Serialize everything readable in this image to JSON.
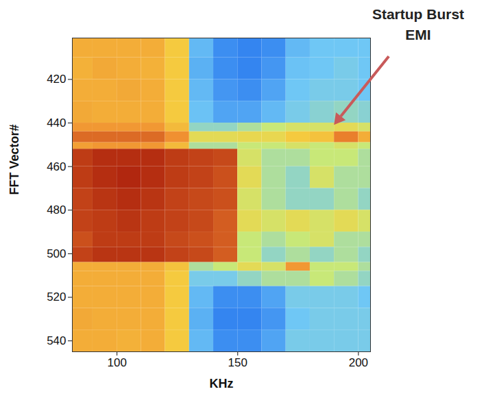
{
  "chart_data": {
    "type": "heatmap",
    "x_label": "KHz",
    "y_label": "FFT Vector#",
    "xlim": [
      81.5,
      205
    ],
    "xticks": [
      100,
      150,
      200
    ],
    "ylim": [
      545,
      401
    ],
    "yticks": [
      420,
      440,
      460,
      480,
      500,
      520,
      540
    ],
    "color_range": [
      0,
      1
    ],
    "x_edges": [
      81.5,
      90,
      100,
      110,
      120,
      130,
      140,
      150,
      160,
      170,
      180,
      190,
      200,
      205
    ],
    "y_edges": [
      401,
      410,
      420,
      430,
      440,
      444,
      449,
      452,
      460,
      470,
      480,
      490,
      497,
      504,
      508,
      515,
      525,
      535,
      545
    ],
    "values": [
      [
        0.75,
        0.75,
        0.75,
        0.75,
        0.68,
        0.3,
        0.2,
        0.18,
        0.2,
        0.3,
        0.33,
        0.33,
        0.33
      ],
      [
        0.74,
        0.76,
        0.75,
        0.74,
        0.68,
        0.28,
        0.2,
        0.18,
        0.22,
        0.32,
        0.33,
        0.35,
        0.33
      ],
      [
        0.75,
        0.75,
        0.76,
        0.75,
        0.68,
        0.3,
        0.22,
        0.2,
        0.25,
        0.33,
        0.35,
        0.35,
        0.33
      ],
      [
        0.76,
        0.75,
        0.75,
        0.75,
        0.68,
        0.32,
        0.25,
        0.25,
        0.3,
        0.35,
        0.38,
        0.4,
        0.38
      ],
      [
        0.8,
        0.8,
        0.8,
        0.8,
        0.72,
        0.4,
        0.4,
        0.45,
        0.5,
        0.55,
        0.55,
        0.6,
        0.55
      ],
      [
        0.88,
        0.88,
        0.88,
        0.88,
        0.82,
        0.6,
        0.6,
        0.62,
        0.62,
        0.68,
        0.7,
        0.85,
        0.75
      ],
      [
        0.78,
        0.8,
        0.8,
        0.8,
        0.72,
        0.45,
        0.45,
        0.5,
        0.5,
        0.55,
        0.5,
        0.55,
        0.5
      ],
      [
        0.95,
        0.97,
        0.97,
        0.97,
        0.95,
        0.94,
        0.93,
        0.55,
        0.45,
        0.45,
        0.5,
        0.5,
        0.45
      ],
      [
        0.95,
        0.97,
        0.98,
        0.97,
        0.95,
        0.94,
        0.92,
        0.6,
        0.45,
        0.4,
        0.55,
        0.45,
        0.45
      ],
      [
        0.94,
        0.96,
        0.97,
        0.96,
        0.94,
        0.93,
        0.92,
        0.55,
        0.45,
        0.4,
        0.4,
        0.45,
        0.4
      ],
      [
        0.94,
        0.95,
        0.96,
        0.95,
        0.94,
        0.93,
        0.9,
        0.6,
        0.55,
        0.6,
        0.55,
        0.6,
        0.55
      ],
      [
        0.92,
        0.95,
        0.95,
        0.95,
        0.93,
        0.92,
        0.9,
        0.5,
        0.45,
        0.5,
        0.55,
        0.45,
        0.45
      ],
      [
        0.94,
        0.96,
        0.96,
        0.96,
        0.94,
        0.93,
        0.9,
        0.5,
        0.4,
        0.45,
        0.4,
        0.45,
        0.4
      ],
      [
        0.75,
        0.75,
        0.75,
        0.75,
        0.7,
        0.45,
        0.5,
        0.6,
        0.55,
        0.8,
        0.5,
        0.5,
        0.45
      ],
      [
        0.75,
        0.75,
        0.75,
        0.75,
        0.68,
        0.35,
        0.35,
        0.4,
        0.45,
        0.45,
        0.5,
        0.45,
        0.4
      ],
      [
        0.75,
        0.75,
        0.75,
        0.75,
        0.68,
        0.3,
        0.2,
        0.2,
        0.25,
        0.35,
        0.35,
        0.35,
        0.33
      ],
      [
        0.76,
        0.75,
        0.75,
        0.75,
        0.68,
        0.28,
        0.18,
        0.18,
        0.22,
        0.33,
        0.35,
        0.35,
        0.35
      ],
      [
        0.75,
        0.75,
        0.74,
        0.75,
        0.68,
        0.3,
        0.2,
        0.2,
        0.25,
        0.35,
        0.35,
        0.35,
        0.35
      ]
    ],
    "annotation": {
      "text": "Startup Burst EMI",
      "x": 190,
      "y": 441
    }
  }
}
